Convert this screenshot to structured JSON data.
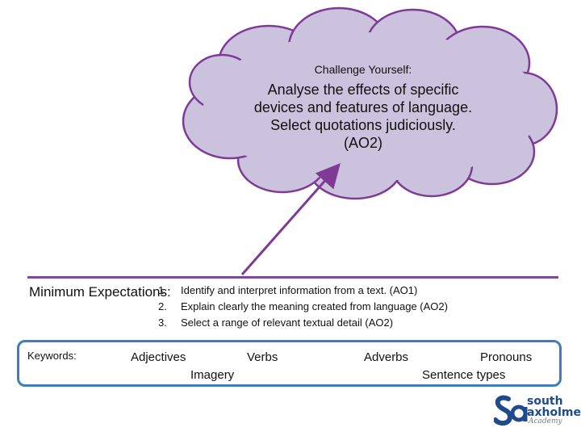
{
  "cloud": {
    "heading": "Challenge Yourself:",
    "lines": [
      "Analyse the effects of specific",
      "devices and features of language.",
      "Select quotations judiciously.",
      "(AO2)"
    ],
    "fill_color": "#cbc2dd",
    "border_color": "#7f3a95"
  },
  "minimum": {
    "label": "Minimum Expectations:",
    "items": [
      {
        "num": "1.",
        "text": "Identify and interpret information from a text. (AO1)"
      },
      {
        "num": "2.",
        "text": "Explain clearly the meaning created from language (AO2)"
      },
      {
        "num": "3.",
        "text": "Select a range of relevant  textual detail (AO2)"
      }
    ],
    "divider_color": "#7b4aa0"
  },
  "keywords": {
    "label": "Keywords:",
    "words": [
      "Adjectives",
      "Verbs",
      "Adverbs",
      "Pronouns",
      "Imagery",
      "Sentence types"
    ],
    "border_color": "#3f7fb8"
  },
  "logo": {
    "line1": "south",
    "line2": "axholme",
    "sub": "Academy",
    "icon": "sa-monogram-icon",
    "brand_color": "#1f4a8c"
  }
}
